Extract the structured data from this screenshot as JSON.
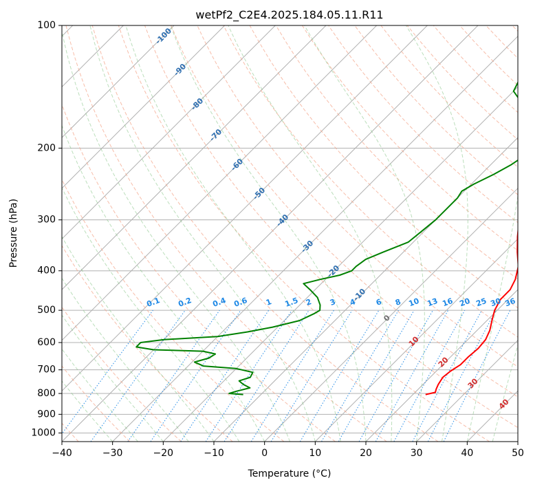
{
  "chart_data": {
    "type": "line",
    "title": "wetPf2_C2E4.2025.184.05.11.R11",
    "xlabel": "Temperature (°C)",
    "ylabel": "Pressure (hPa)",
    "xlim": [
      -40,
      50
    ],
    "ylim": [
      1050,
      100
    ],
    "y_scale": "log",
    "grid": true,
    "xticks": [
      "−40",
      "−30",
      "−20",
      "−10",
      "0",
      "10",
      "20",
      "30",
      "40",
      "50"
    ],
    "yticks": [
      "100",
      "200",
      "300",
      "400",
      "500",
      "600",
      "700",
      "800",
      "900",
      "1000"
    ],
    "dry_adiabat_labels": [
      "-100",
      "-90",
      "-80",
      "-70",
      "-60",
      "-50",
      "-40",
      "-30",
      "-20",
      "-10",
      "0"
    ],
    "moist_adiabat_labels": [
      "10",
      "20",
      "30",
      "40"
    ],
    "mixing_ratio_labels": [
      "0.1",
      "0.2",
      "0.4",
      "0.6",
      "1",
      "1.5",
      "2",
      "3",
      "4",
      "6",
      "8",
      "10",
      "13",
      "16",
      "20",
      "25",
      "30",
      "36"
    ],
    "series": [
      {
        "color": "#ff0000",
        "points": [
          [
            805,
            22.5
          ],
          [
            795,
            24.0
          ],
          [
            780,
            23.5
          ],
          [
            760,
            23.0
          ],
          [
            730,
            22.5
          ],
          [
            705,
            22.8
          ],
          [
            680,
            23.5
          ],
          [
            650,
            23.5
          ],
          [
            620,
            23.8
          ],
          [
            590,
            23.5
          ],
          [
            560,
            22.5
          ],
          [
            530,
            21.0
          ],
          [
            500,
            19.5
          ],
          [
            470,
            18.5
          ],
          [
            445,
            18.5
          ],
          [
            420,
            17.5
          ],
          [
            390,
            15.5
          ],
          [
            360,
            12.5
          ],
          [
            330,
            9.5
          ],
          [
            300,
            6.5
          ],
          [
            275,
            4.5
          ],
          [
            260,
            3.5
          ],
          [
            240,
            1.0
          ],
          [
            225,
            -2.0
          ],
          [
            210,
            -5.0
          ],
          [
            195,
            -8.0
          ],
          [
            185,
            -10.0
          ],
          [
            170,
            -13.0
          ],
          [
            160,
            -15.0
          ],
          [
            145,
            -17.5
          ],
          [
            130,
            -20.0
          ],
          [
            115,
            -21.5
          ],
          [
            100,
            -23.0
          ]
        ]
      },
      {
        "color": "#008000",
        "points": [
          [
            805,
            -13.5
          ],
          [
            800,
            -16.5
          ],
          [
            790,
            -15.5
          ],
          [
            775,
            -13.5
          ],
          [
            760,
            -15.5
          ],
          [
            745,
            -17.0
          ],
          [
            730,
            -15.5
          ],
          [
            710,
            -16.0
          ],
          [
            695,
            -20.0
          ],
          [
            685,
            -27.0
          ],
          [
            670,
            -29.5
          ],
          [
            655,
            -27.5
          ],
          [
            640,
            -27.0
          ],
          [
            630,
            -30.0
          ],
          [
            625,
            -40.0
          ],
          [
            615,
            -44.0
          ],
          [
            600,
            -44.0
          ],
          [
            590,
            -40.0
          ],
          [
            580,
            -30.0
          ],
          [
            565,
            -25.0
          ],
          [
            550,
            -21.0
          ],
          [
            530,
            -17.0
          ],
          [
            510,
            -15.5
          ],
          [
            500,
            -15.0
          ],
          [
            485,
            -16.0
          ],
          [
            465,
            -18.0
          ],
          [
            445,
            -21.0
          ],
          [
            430,
            -23.5
          ],
          [
            420,
            -21.0
          ],
          [
            410,
            -18.0
          ],
          [
            400,
            -16.5
          ],
          [
            390,
            -16.5
          ],
          [
            375,
            -16.0
          ],
          [
            360,
            -14.0
          ],
          [
            340,
            -11.0
          ],
          [
            320,
            -10.5
          ],
          [
            300,
            -10.0
          ],
          [
            280,
            -10.0
          ],
          [
            265,
            -10.0
          ],
          [
            255,
            -10.5
          ],
          [
            245,
            -9.5
          ],
          [
            232,
            -7.5
          ],
          [
            220,
            -6.0
          ],
          [
            208,
            -5.0
          ],
          [
            198,
            -5.0
          ],
          [
            188,
            -6.0
          ],
          [
            175,
            -8.0
          ],
          [
            165,
            -10.5
          ],
          [
            155,
            -16.0
          ],
          [
            145,
            -20.0
          ],
          [
            137,
            -21.0
          ],
          [
            128,
            -21.0
          ],
          [
            120,
            -22.0
          ],
          [
            110,
            -24.0
          ],
          [
            100,
            -26.5
          ]
        ]
      }
    ]
  }
}
